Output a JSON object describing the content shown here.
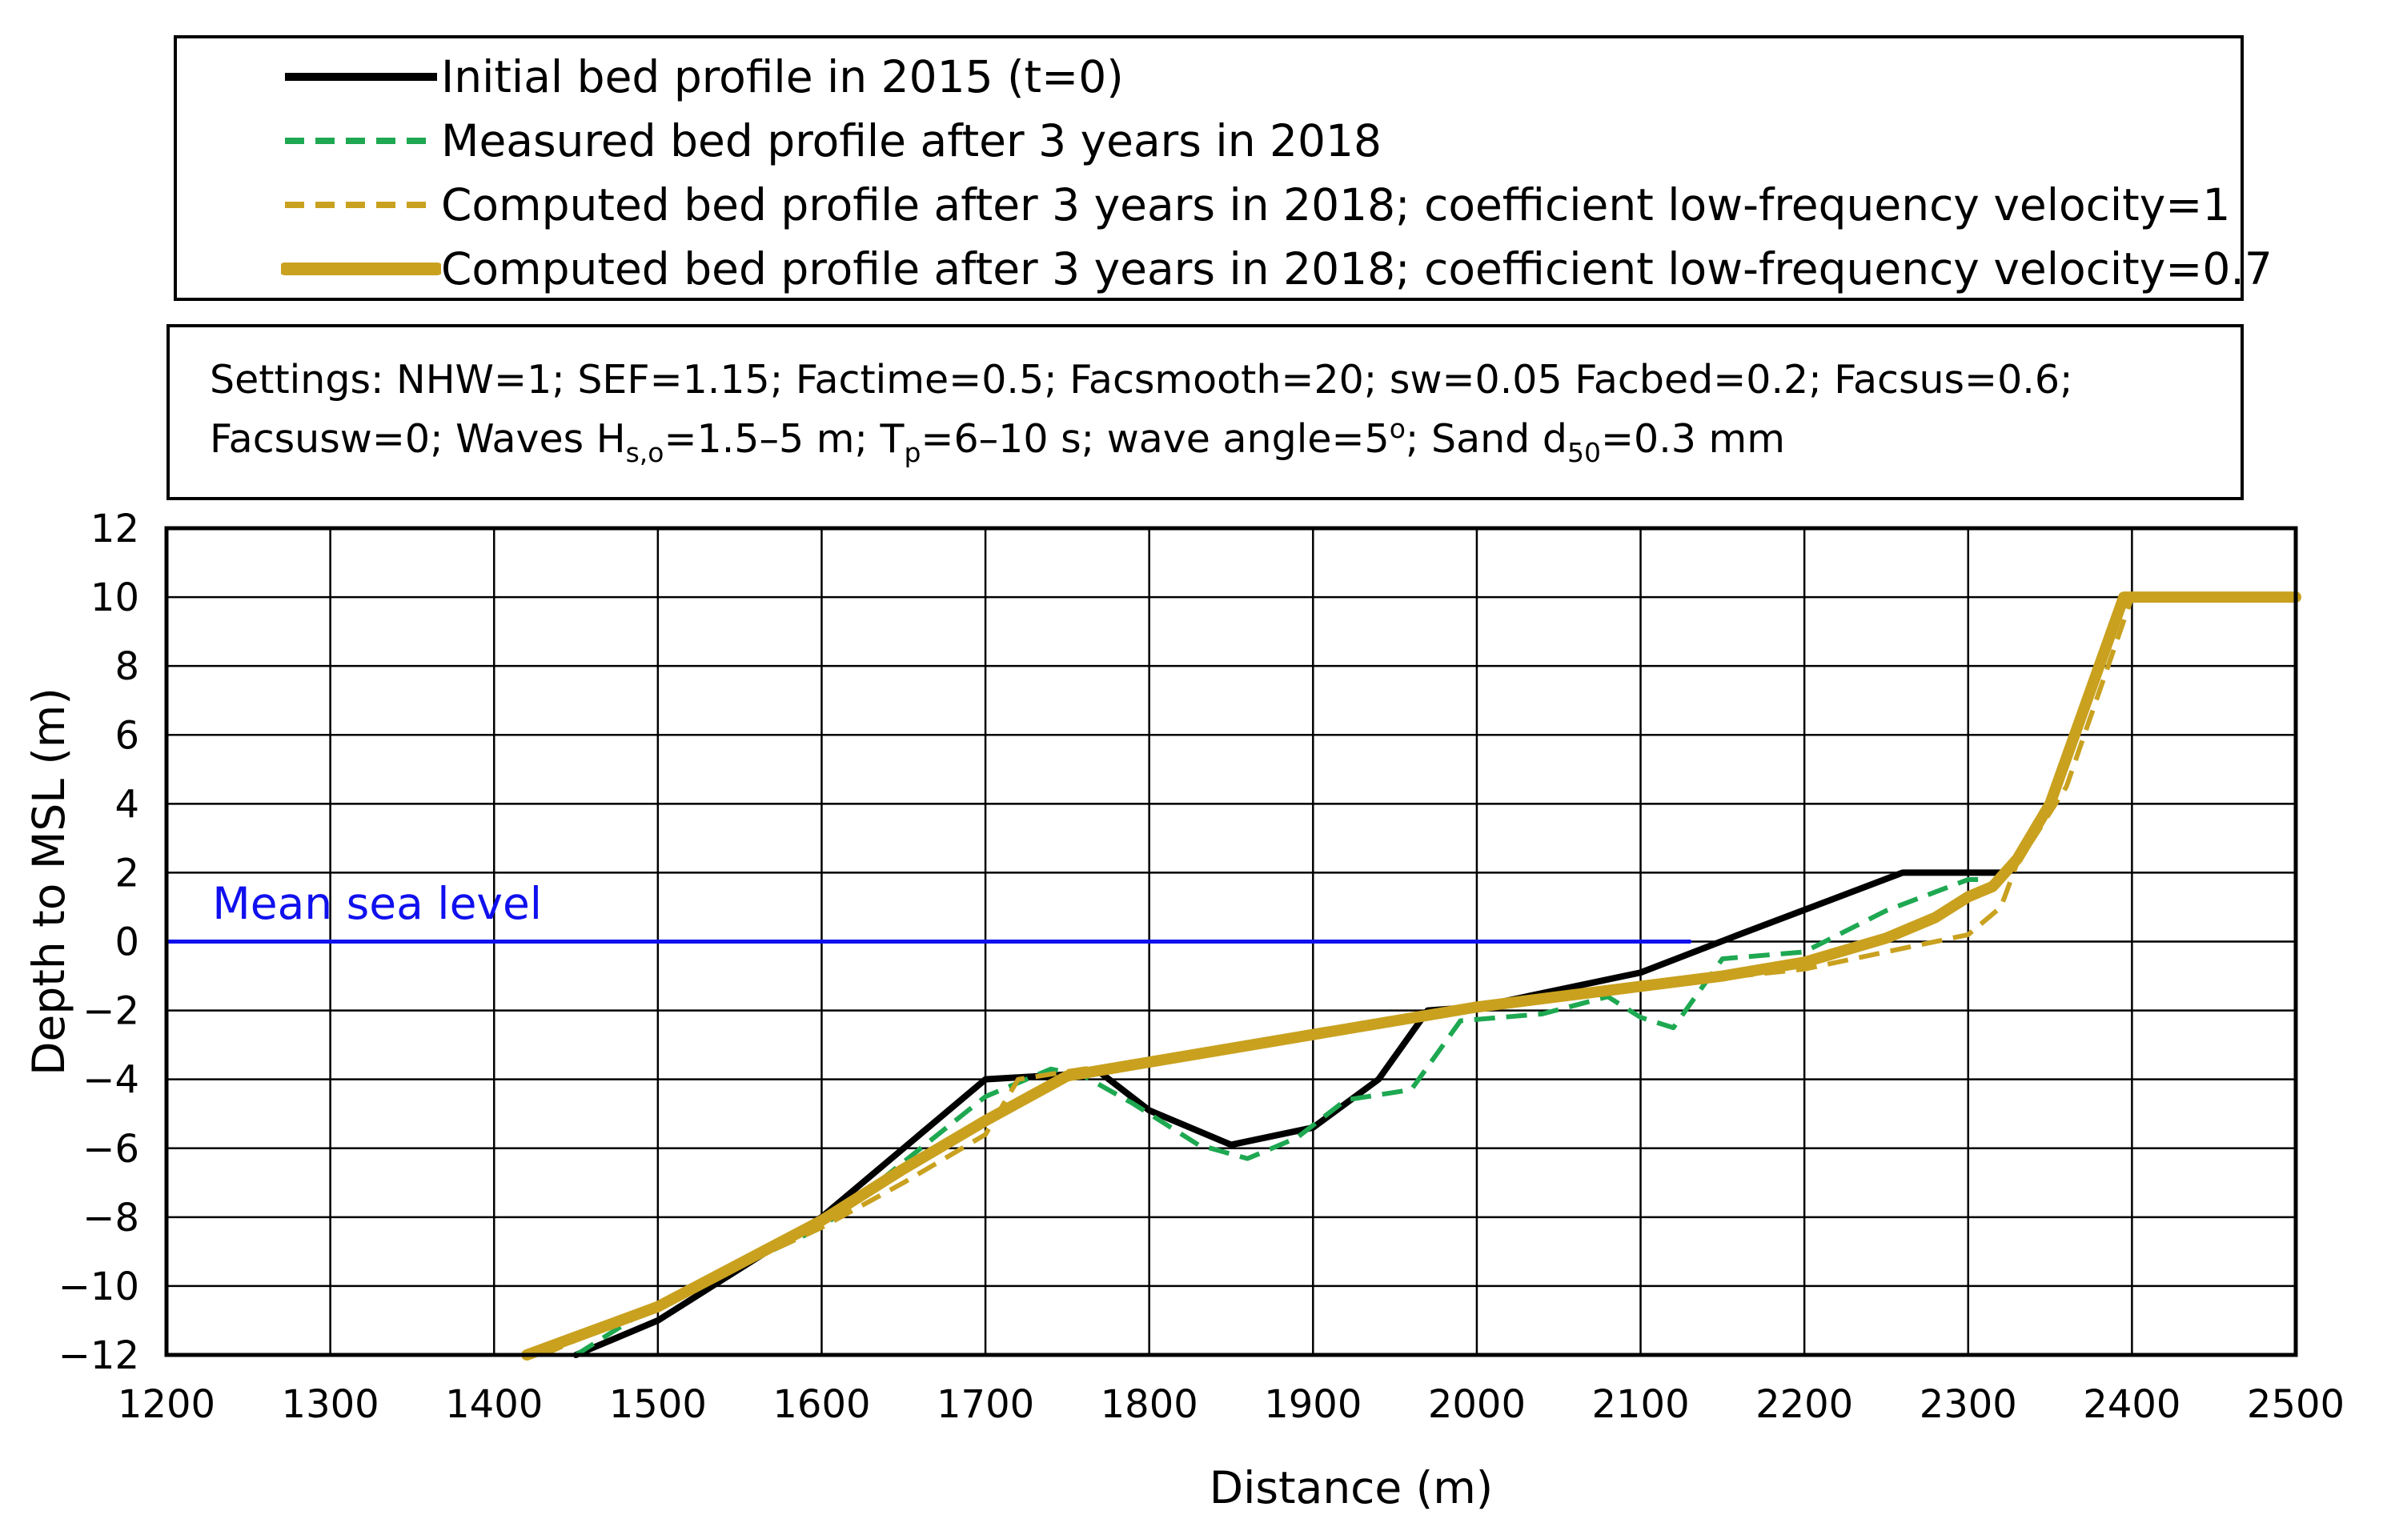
{
  "legend": {
    "items": [
      {
        "label": "Initial bed profile in 2015 (t=0)",
        "color": "#000000",
        "style": "solid"
      },
      {
        "label": "Measured bed profile after  3 years in 2018",
        "color": "#1ea851",
        "style": "dashed"
      },
      {
        "label": "Computed bed profile after 3 years in 2018; coefficient low-frequency velocity=1",
        "color": "#c9a11f",
        "style": "dashed"
      },
      {
        "label": "Computed bed profile after 3 years in 2018; coefficient low-frequency velocity=0.7",
        "color": "#c9a11f",
        "style": "solid-thick"
      }
    ]
  },
  "settings": {
    "line1": "Settings: NHW=1; SEF=1.15; Factime=0.5; Facsmooth=20; sw=0.05  Facbed=0.2; Facsus=0.6;",
    "line2_a": "Facsusw=0; Waves H",
    "line2_hs_sub": "s,o",
    "line2_b": "=1.5–5 m; T",
    "line2_tp_sub": "p",
    "line2_c": "=6–10 s; wave angle=5",
    "line2_deg_sup": "o",
    "line2_d": "; Sand d",
    "line2_d50_sub": "50",
    "line2_e": "=0.3 mm"
  },
  "chart_data": {
    "type": "line",
    "title": "",
    "xlabel": "Distance (m)",
    "ylabel": "Depth to MSL (m)",
    "xlim": [
      1200,
      2500
    ],
    "ylim": [
      -12,
      12
    ],
    "x_ticks": [
      1200,
      1300,
      1400,
      1500,
      1600,
      1700,
      1800,
      1900,
      2000,
      2100,
      2200,
      2300,
      2400,
      2500
    ],
    "y_ticks": [
      -12,
      -10,
      -8,
      -6,
      -4,
      -2,
      0,
      2,
      4,
      6,
      8,
      10,
      12
    ],
    "x_tick_labels": [
      "1200",
      "1300",
      "1400",
      "1500",
      "1600",
      "1700",
      "1800",
      "1900",
      "2000",
      "2100",
      "2200",
      "2300",
      "2400",
      "2500"
    ],
    "y_tick_labels": [
      "−12",
      "−10",
      "−8",
      "−6",
      "−4",
      "−2",
      "0",
      "2",
      "4",
      "6",
      "8",
      "10",
      "12"
    ],
    "grid": true,
    "annotations": [
      {
        "text": "Mean sea level",
        "x": 1228,
        "y": 0.9,
        "color": "#1010ee"
      }
    ],
    "series": [
      {
        "name": "Mean sea level",
        "color": "#1010ee",
        "style": "solid",
        "width": 5,
        "x": [
          1200,
          2130
        ],
        "y": [
          0,
          0
        ]
      },
      {
        "name": "Initial bed profile in 2015 (t=0)",
        "color": "#000000",
        "style": "solid",
        "width": 8,
        "x": [
          1450,
          1500,
          1600,
          1700,
          1770,
          1800,
          1850,
          1900,
          1940,
          1970,
          2000,
          2100,
          2160,
          2260,
          2320
        ],
        "y": [
          -12,
          -11,
          -8,
          -4,
          -3.8,
          -4.9,
          -5.9,
          -5.4,
          -4,
          -2,
          -1.9,
          -0.9,
          0.2,
          2,
          2
        ]
      },
      {
        "name": "Measured bed profile after  3 years in 2018",
        "color": "#1ea851",
        "style": "dashed",
        "width": 6,
        "x": [
          1450,
          1500,
          1600,
          1700,
          1740,
          1760,
          1790,
          1830,
          1860,
          1890,
          1920,
          1960,
          1990,
          2040,
          2080,
          2100,
          2120,
          2150,
          2200,
          2250,
          2300,
          2310
        ],
        "y": [
          -12,
          -10.5,
          -8.3,
          -4.5,
          -3.7,
          -3.9,
          -4.7,
          -5.9,
          -6.3,
          -5.7,
          -4.6,
          -4.3,
          -2.3,
          -2.1,
          -1.6,
          -2.2,
          -2.5,
          -0.5,
          -0.3,
          0.9,
          1.8,
          1.8
        ]
      },
      {
        "name": "Computed bed profile after 3 years in 2018; coefficient low-frequency velocity=1",
        "color": "#c9a11f",
        "style": "dashed",
        "width": 6,
        "x": [
          1430,
          1500,
          1600,
          1650,
          1700,
          1720,
          1760,
          1800,
          1900,
          2000,
          2100,
          2200,
          2250,
          2300,
          2320,
          2330,
          2340,
          2360,
          2400,
          2500
        ],
        "y": [
          -12,
          -10.5,
          -8.3,
          -7,
          -5.6,
          -4,
          -3.7,
          -3.5,
          -2.6,
          -1.9,
          -1.3,
          -0.8,
          -0.3,
          0.2,
          1,
          2.3,
          3,
          4.5,
          10,
          10
        ]
      },
      {
        "name": "Computed bed profile after 3 years in 2018; coefficient low-frequency velocity=0.7",
        "color": "#c9a11f",
        "style": "solid-thick",
        "width": 14,
        "x": [
          1420,
          1500,
          1600,
          1650,
          1700,
          1750,
          1800,
          1850,
          1900,
          1950,
          2000,
          2050,
          2100,
          2150,
          2200,
          2250,
          2280,
          2300,
          2315,
          2330,
          2350,
          2395,
          2500
        ],
        "y": [
          -12,
          -10.6,
          -8.1,
          -6.6,
          -5.2,
          -3.9,
          -3.5,
          -3.1,
          -2.7,
          -2.3,
          -1.9,
          -1.6,
          -1.3,
          -1.0,
          -0.6,
          0.1,
          0.7,
          1.3,
          1.6,
          2.4,
          4,
          10,
          10
        ]
      }
    ]
  }
}
